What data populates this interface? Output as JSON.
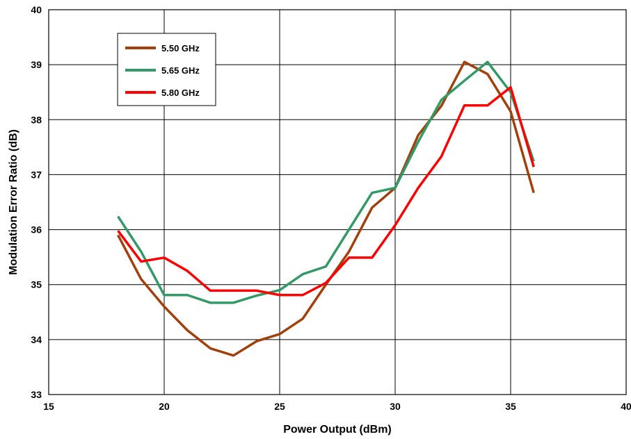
{
  "chart_data": {
    "type": "line",
    "title": "",
    "xlabel": "Power Output (dBm)",
    "ylabel": "Modulation Error Ratio (dB)",
    "xlim": [
      15,
      40
    ],
    "ylim": [
      33,
      40
    ],
    "xticks": [
      15,
      20,
      25,
      30,
      35,
      40
    ],
    "yticks": [
      33,
      34,
      35,
      36,
      37,
      38,
      39,
      40
    ],
    "grid": true,
    "legend_position": "top-left",
    "x": [
      18,
      19,
      20,
      21,
      22,
      23,
      24,
      25,
      26,
      27,
      28,
      29,
      30,
      31,
      32,
      33,
      34,
      35,
      36
    ],
    "series": [
      {
        "name": "5.50 GHz",
        "color": "#A0410D",
        "values": [
          35.9,
          35.1,
          34.6,
          34.17,
          33.84,
          33.71,
          33.97,
          34.1,
          34.38,
          35.0,
          35.6,
          36.4,
          36.76,
          37.72,
          38.25,
          39.05,
          38.83,
          38.15,
          36.67
        ]
      },
      {
        "name": "5.65 GHz",
        "color": "#339966",
        "values": [
          36.24,
          35.6,
          34.81,
          34.81,
          34.67,
          34.67,
          34.8,
          34.9,
          35.19,
          35.33,
          36.0,
          36.67,
          36.76,
          37.6,
          38.36,
          38.71,
          39.05,
          38.5,
          37.24
        ]
      },
      {
        "name": "5.80 GHz",
        "color": "#FF0000",
        "values": [
          35.98,
          35.42,
          35.49,
          35.25,
          34.89,
          34.89,
          34.89,
          34.81,
          34.81,
          35.03,
          35.49,
          35.49,
          36.08,
          36.76,
          37.33,
          38.26,
          38.26,
          38.59,
          37.14
        ]
      }
    ]
  }
}
